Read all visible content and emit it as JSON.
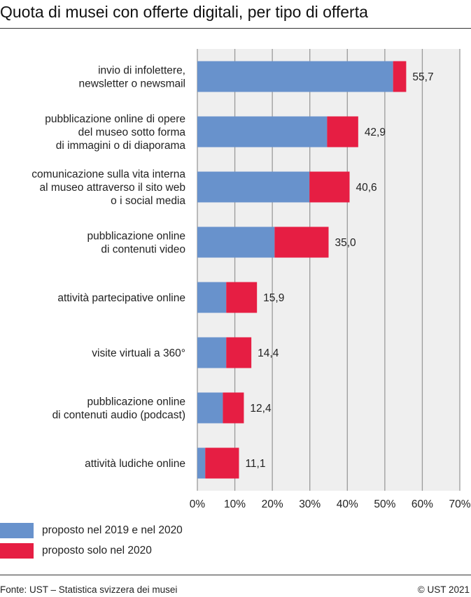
{
  "title": "Quota di musei con offerte digitali, per tipo di offerta",
  "chart_data": {
    "type": "bar",
    "orientation": "horizontal",
    "stacked": true,
    "title": "Quota di musei con offerte digitali, per tipo di offerta",
    "categories": [
      [
        "invio di infolettere,",
        "newsletter o newsmail"
      ],
      [
        "pubblicazione online di opere",
        "del museo sotto forma",
        "di immagini o di diaporama"
      ],
      [
        "comunicazione sulla vita interna",
        "al museo attraverso il sito web",
        "o i social media"
      ],
      [
        "pubblicazione online",
        "di contenuti video"
      ],
      [
        "attività partecipative online"
      ],
      [
        "visite virtuali a 360°"
      ],
      [
        "pubblicazione online",
        "di contenuti audio (podcast)"
      ],
      [
        "attività ludiche online"
      ]
    ],
    "series": [
      {
        "name": "proposto nel 2019 e nel 2020",
        "color": "#6892cc",
        "values": [
          52.2,
          34.6,
          29.9,
          20.6,
          7.7,
          7.7,
          6.8,
          2.1
        ]
      },
      {
        "name": "proposto solo nel 2020",
        "color": "#e61e43",
        "values": [
          3.5,
          8.3,
          10.7,
          14.4,
          8.2,
          6.7,
          5.6,
          9.0
        ]
      }
    ],
    "totals": [
      "55,7",
      "42,9",
      "40,6",
      "35,0",
      "15,9",
      "14,4",
      "12,4",
      "11,1"
    ],
    "totals_values": [
      55.7,
      42.9,
      40.6,
      35.0,
      15.9,
      14.4,
      12.4,
      11.1
    ],
    "xlim": [
      0,
      70
    ],
    "xticks": [
      "0%",
      "10%",
      "20%",
      "30%",
      "40%",
      "50%",
      "60%",
      "70%"
    ],
    "grid": true,
    "legend_placement": "bottom-left"
  },
  "footer": {
    "source": "Fonte: UST – Statistica svizzera dei musei",
    "copyright": "© UST 2021"
  }
}
